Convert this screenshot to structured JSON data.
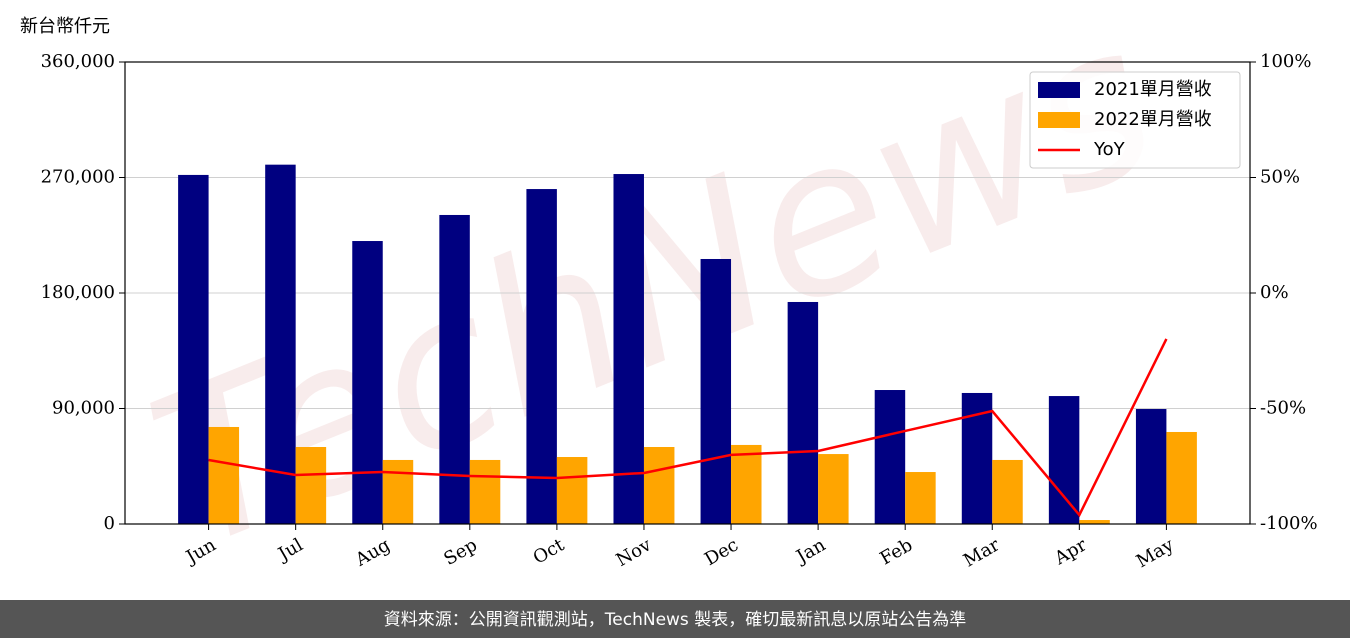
{
  "chart_data": {
    "type": "bar",
    "ylabel": "新台幣仟元",
    "watermark": "TechNews",
    "footer": "資料來源：公開資訊觀測站，TechNews 製表，確切最新訊息以原站公告為準",
    "categories": [
      "Jun",
      "Jul",
      "Aug",
      "Sep",
      "Oct",
      "Nov",
      "Dec",
      "Jan",
      "Feb",
      "Mar",
      "Apr",
      "May"
    ],
    "series": [
      {
        "name": "2021單月營收",
        "color": "#000080",
        "type": "bar",
        "values": [
          272000,
          280000,
          220500,
          240800,
          261000,
          272700,
          206500,
          173000,
          104400,
          102100,
          99700,
          89600
        ]
      },
      {
        "name": "2022單月營收",
        "color": "#ffa500",
        "type": "bar",
        "values": [
          75600,
          60000,
          49900,
          49900,
          52200,
          60000,
          61600,
          54500,
          40500,
          49900,
          3100,
          71700
        ]
      },
      {
        "name": "YoY",
        "color": "#ff0000",
        "type": "line",
        "axis": "y2",
        "values": [
          -72.3,
          -78.8,
          -77.5,
          -79.2,
          -80.1,
          -77.9,
          -70.1,
          -68.4,
          -59.7,
          -51.1,
          -96.1,
          -19.9
        ]
      }
    ],
    "ylim": [
      0,
      360000
    ],
    "yticks": [
      0,
      {
        "value": 90000,
        "label": "90,000"
      },
      {
        "value": 180000,
        "label": "180,000"
      },
      {
        "value": 270000,
        "label": "270,000"
      },
      {
        "value": 360000,
        "label": "360,000"
      }
    ],
    "y2lim": [
      -100,
      100
    ],
    "y2ticks": [
      {
        "value": -100,
        "label": "-100%"
      },
      {
        "value": -50,
        "label": "-50%"
      },
      {
        "value": 0,
        "label": "0%"
      },
      {
        "value": 50,
        "label": "50%"
      },
      {
        "value": 100,
        "label": "100%"
      }
    ],
    "grid": true,
    "legend": "upper right"
  }
}
